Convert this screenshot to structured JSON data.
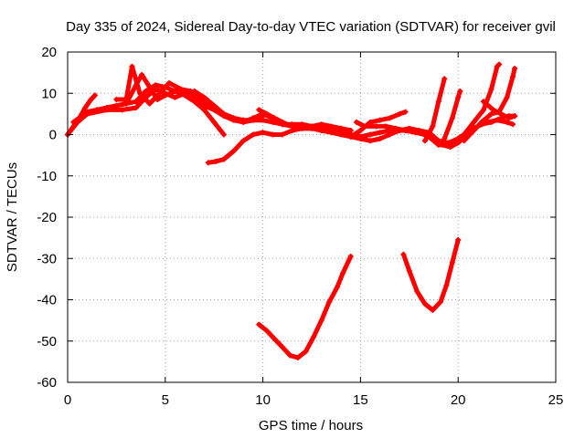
{
  "chart_data": {
    "type": "scatter",
    "title": "Day 335 of 2024, Sidereal Day-to-day VTEC variation (SDTVAR) for receiver gvil",
    "xlabel": "GPS time / hours",
    "ylabel": "SDTVAR / TECUs",
    "xlim": [
      0,
      25
    ],
    "ylim": [
      -60,
      20
    ],
    "xticks": [
      0,
      5,
      10,
      15,
      20,
      25
    ],
    "yticks": [
      -60,
      -50,
      -40,
      -30,
      -20,
      -10,
      0,
      10,
      20
    ],
    "grid": true,
    "marker_color": "#ff0000",
    "series": [
      {
        "points": [
          [
            0,
            0
          ],
          [
            0.3,
            2
          ],
          [
            0.6,
            4
          ],
          [
            0.9,
            6.5
          ],
          [
            1.2,
            8.5
          ],
          [
            1.4,
            9.5
          ]
        ]
      },
      {
        "points": [
          [
            0,
            0
          ],
          [
            0.5,
            3
          ],
          [
            1,
            5
          ],
          [
            1.5,
            6
          ],
          [
            2,
            6.5
          ],
          [
            2.5,
            7
          ],
          [
            3,
            7.5
          ],
          [
            3.5,
            12
          ],
          [
            3.8,
            14.5
          ],
          [
            4.2,
            11.5
          ],
          [
            4.6,
            8.5
          ],
          [
            5,
            9.5
          ],
          [
            5.5,
            10.5
          ],
          [
            6,
            9.5
          ],
          [
            6.5,
            8
          ],
          [
            7,
            6
          ],
          [
            7.5,
            3
          ],
          [
            8,
            0
          ]
        ]
      },
      {
        "points": [
          [
            0.3,
            3
          ],
          [
            1,
            5.5
          ],
          [
            1.5,
            6
          ],
          [
            2,
            6.5
          ],
          [
            2.5,
            7
          ],
          [
            3,
            7.5
          ],
          [
            3.5,
            8
          ],
          [
            4,
            10.5
          ],
          [
            4.5,
            12
          ],
          [
            5,
            11.5
          ],
          [
            5.5,
            10.5
          ],
          [
            6,
            10
          ],
          [
            6.5,
            9
          ],
          [
            7,
            7
          ],
          [
            7.5,
            6
          ],
          [
            8,
            5
          ],
          [
            8.5,
            4
          ],
          [
            9,
            3
          ],
          [
            9.5,
            3.5
          ],
          [
            10,
            4.5
          ]
        ]
      },
      {
        "points": [
          [
            1,
            5
          ],
          [
            2,
            6
          ],
          [
            2.8,
            6
          ],
          [
            3.5,
            6.5
          ],
          [
            4,
            9
          ],
          [
            4.5,
            11
          ],
          [
            5,
            10
          ],
          [
            5.5,
            9
          ],
          [
            6,
            10
          ],
          [
            6.5,
            10.5
          ],
          [
            7,
            9
          ],
          [
            7.5,
            7
          ],
          [
            8,
            5
          ],
          [
            8.5,
            4
          ],
          [
            9,
            3.5
          ],
          [
            9.5,
            3.5
          ],
          [
            10,
            3.5
          ],
          [
            10.5,
            3
          ],
          [
            11,
            2.5
          ],
          [
            11.5,
            2.5
          ],
          [
            12,
            2.5
          ],
          [
            12.5,
            2
          ],
          [
            13,
            2
          ],
          [
            13.5,
            1.5
          ],
          [
            14,
            1.5
          ],
          [
            14.5,
            1
          ]
        ]
      },
      {
        "points": [
          [
            2.5,
            8.5
          ],
          [
            3,
            8.5
          ],
          [
            3.3,
            16.5
          ],
          [
            3.7,
            10
          ],
          [
            4.2,
            7.5
          ],
          [
            4.8,
            10.5
          ],
          [
            5.2,
            12.5
          ],
          [
            5.8,
            11
          ],
          [
            6.3,
            10.5
          ],
          [
            7,
            8
          ],
          [
            7.5,
            6
          ],
          [
            8,
            4.5
          ],
          [
            8.5,
            3.5
          ],
          [
            9,
            3
          ],
          [
            9.5,
            4
          ],
          [
            10,
            5
          ],
          [
            10.5,
            4
          ],
          [
            11,
            2.5
          ],
          [
            11.5,
            2
          ],
          [
            12,
            2
          ],
          [
            12.5,
            2
          ],
          [
            13,
            2.5
          ],
          [
            13.5,
            2
          ],
          [
            14,
            1.5
          ],
          [
            14.5,
            1
          ]
        ]
      },
      {
        "points": [
          [
            7.2,
            -6.8
          ],
          [
            7.6,
            -6.5
          ],
          [
            8,
            -6
          ],
          [
            8.5,
            -4
          ],
          [
            9,
            -1.5
          ],
          [
            9.5,
            0
          ],
          [
            10,
            0.5
          ],
          [
            10.5,
            0
          ],
          [
            11,
            0
          ],
          [
            11.5,
            1
          ],
          [
            12,
            1.5
          ],
          [
            12.5,
            1.5
          ],
          [
            13,
            1
          ],
          [
            13.5,
            0.5
          ],
          [
            14,
            0
          ],
          [
            14.5,
            -0.5
          ],
          [
            15,
            -1
          ],
          [
            15.5,
            -1.5
          ],
          [
            16,
            -1
          ],
          [
            16.5,
            0
          ],
          [
            17,
            1
          ],
          [
            17.5,
            1
          ],
          [
            18,
            0.5
          ],
          [
            18.5,
            -0.5
          ],
          [
            19,
            -2.5
          ],
          [
            19.5,
            -2.5
          ],
          [
            20,
            -2
          ]
        ]
      },
      {
        "points": [
          [
            9.8,
            6
          ],
          [
            10.2,
            5
          ],
          [
            10.6,
            4
          ],
          [
            11,
            3
          ],
          [
            11.5,
            2
          ],
          [
            12,
            1.5
          ],
          [
            12.5,
            1.5
          ],
          [
            13,
            1.5
          ],
          [
            13.5,
            1
          ],
          [
            14,
            1
          ],
          [
            14.5,
            0
          ],
          [
            15,
            -0.5
          ],
          [
            15.5,
            0
          ],
          [
            16,
            0.5
          ],
          [
            16.5,
            1
          ],
          [
            17,
            1
          ],
          [
            17.5,
            1.5
          ],
          [
            18,
            1
          ],
          [
            18.5,
            0.5
          ],
          [
            19,
            -1.5
          ],
          [
            19.5,
            -2
          ],
          [
            20,
            -1
          ],
          [
            20.5,
            0.5
          ],
          [
            21,
            2
          ],
          [
            21.5,
            3
          ],
          [
            22,
            3.5
          ],
          [
            22.5,
            3
          ],
          [
            22.8,
            2.5
          ]
        ]
      },
      {
        "points": [
          [
            14.5,
            -0.5
          ],
          [
            15,
            1
          ],
          [
            15.5,
            3
          ],
          [
            16,
            3.5
          ],
          [
            16.5,
            4
          ],
          [
            17,
            5
          ],
          [
            17.3,
            5.5
          ]
        ]
      },
      {
        "points": [
          [
            14.8,
            3
          ],
          [
            15.2,
            2
          ],
          [
            15.8,
            2
          ],
          [
            16.3,
            2
          ],
          [
            16.8,
            1.5
          ],
          [
            17.3,
            1
          ],
          [
            17.8,
            0.5
          ],
          [
            18.3,
            0
          ],
          [
            18.8,
            -1
          ],
          [
            19.2,
            -2.5
          ],
          [
            19.6,
            -3
          ],
          [
            20,
            -2
          ],
          [
            20.4,
            0
          ],
          [
            20.8,
            1.5
          ],
          [
            21.2,
            2.5
          ],
          [
            21.7,
            3
          ],
          [
            22.2,
            4
          ],
          [
            22.6,
            4.5
          ],
          [
            22.9,
            4.5
          ]
        ]
      },
      {
        "points": [
          [
            18.3,
            -1.5
          ],
          [
            18.7,
            2
          ],
          [
            19,
            8
          ],
          [
            19.3,
            13.5
          ]
        ]
      },
      {
        "points": [
          [
            19.3,
            -1
          ],
          [
            19.7,
            4
          ],
          [
            20,
            9
          ],
          [
            20.1,
            10.5
          ]
        ]
      },
      {
        "points": [
          [
            19.8,
            -1.5
          ],
          [
            20.3,
            0
          ],
          [
            20.8,
            3
          ],
          [
            21.3,
            6
          ],
          [
            21.7,
            11
          ],
          [
            22,
            16.5
          ],
          [
            22.1,
            17
          ]
        ]
      },
      {
        "points": [
          [
            20.3,
            -1.5
          ],
          [
            20.8,
            1
          ],
          [
            21.2,
            3
          ],
          [
            21.7,
            5
          ],
          [
            22.1,
            5.5
          ],
          [
            22.5,
            9
          ],
          [
            22.8,
            14
          ],
          [
            22.9,
            16
          ]
        ]
      },
      {
        "points": [
          [
            21.3,
            8
          ],
          [
            21.8,
            6
          ],
          [
            22.2,
            5
          ],
          [
            22.6,
            4
          ],
          [
            22.9,
            4.5
          ]
        ]
      },
      {
        "points": [
          [
            9.8,
            -46
          ],
          [
            10.2,
            -47.5
          ],
          [
            10.6,
            -49.5
          ],
          [
            11,
            -51.5
          ],
          [
            11.4,
            -53.5
          ],
          [
            11.8,
            -54
          ],
          [
            12.2,
            -52.5
          ],
          [
            12.6,
            -49
          ],
          [
            13,
            -45
          ],
          [
            13.4,
            -40.5
          ],
          [
            13.8,
            -37
          ],
          [
            14.1,
            -33.5
          ],
          [
            14.5,
            -29.5
          ]
        ]
      },
      {
        "points": [
          [
            17.2,
            -29
          ],
          [
            17.5,
            -33
          ],
          [
            17.9,
            -38
          ],
          [
            18.3,
            -41
          ],
          [
            18.7,
            -42.5
          ],
          [
            19.1,
            -40.5
          ],
          [
            19.4,
            -36.5
          ],
          [
            19.7,
            -31
          ],
          [
            20,
            -25.5
          ]
        ]
      }
    ]
  }
}
